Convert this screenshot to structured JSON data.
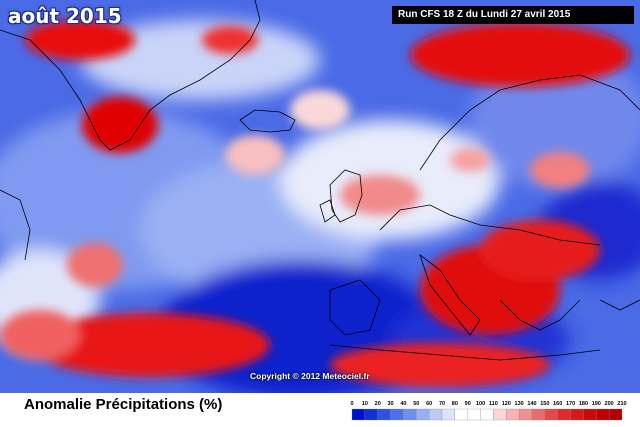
{
  "map": {
    "title": "août 2015",
    "run_info": "Run CFS 18 Z du Lundi 27 avril 2015",
    "copyright": "Copyright © 2012 Meteociel.fr",
    "legend_label": "Anomalie Précipitations (%)"
  },
  "legend": {
    "ticks": [
      "0",
      "10",
      "20",
      "30",
      "40",
      "50",
      "60",
      "70",
      "80",
      "90",
      "100",
      "110",
      "120",
      "130",
      "140",
      "150",
      "160",
      "170",
      "180",
      "190",
      "200",
      "210"
    ],
    "colors": [
      "#0010c8",
      "#1030d8",
      "#3050e0",
      "#5070e8",
      "#7090f0",
      "#98b0f4",
      "#bccbf8",
      "#dce4fb",
      "#ffffff",
      "#ffffff",
      "#ffffff",
      "#fbd8d8",
      "#f6b4b4",
      "#f09090",
      "#ea6c6c",
      "#e44848",
      "#de2c2c",
      "#d81818",
      "#cc0808",
      "#c00000",
      "#b00000"
    ]
  },
  "colors": {
    "wet": "#d80000",
    "dry": "#0a14d2",
    "neutral": "#ffffff",
    "borders": "#000000"
  }
}
